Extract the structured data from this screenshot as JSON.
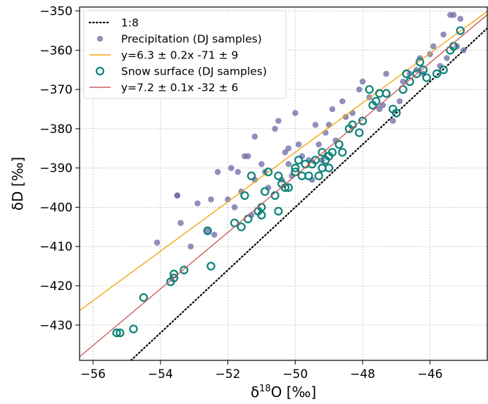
{
  "chart_data": {
    "type": "scatter",
    "title": "",
    "xlabel_prefix": "δ",
    "xlabel_sup": "18",
    "xlabel_suffix": "O [‰]",
    "ylabel": "δD [‰]",
    "xlim": [
      -56.4,
      -44.3
    ],
    "ylim": [
      -439,
      -349
    ],
    "x_ticks": [
      -56,
      -54,
      -52,
      -50,
      -48,
      -46
    ],
    "y_ticks": [
      -350,
      -360,
      -370,
      -380,
      -390,
      -400,
      -410,
      -420,
      -430
    ],
    "grid": true,
    "legend_position": "upper-left",
    "series": [
      {
        "name": "1:8",
        "kind": "line",
        "style": "dotted",
        "color": "#000000",
        "slope": 8,
        "intercept": 0
      },
      {
        "name": "Precipitation (DJ samples)",
        "kind": "points",
        "marker": "filled-circle",
        "color": "#6b6aa6",
        "x": [
          -54.1,
          -53.5,
          -53.5,
          -53.4,
          -53.1,
          -52.9,
          -52.6,
          -52.5,
          -52.4,
          -52.3,
          -52.0,
          -51.9,
          -51.8,
          -51.7,
          -51.6,
          -51.5,
          -51.4,
          -51.3,
          -51.2,
          -51.2,
          -51.0,
          -50.9,
          -50.8,
          -50.6,
          -50.5,
          -50.4,
          -50.3,
          -50.2,
          -50.2,
          -50.1,
          -50.0,
          -49.9,
          -49.8,
          -49.6,
          -49.5,
          -49.4,
          -49.3,
          -49.2,
          -49.1,
          -49.0,
          -48.9,
          -48.8,
          -48.6,
          -48.5,
          -48.3,
          -48.1,
          -48.0,
          -47.8,
          -47.5,
          -47.4,
          -47.3,
          -47.1,
          -46.9,
          -46.8,
          -46.6,
          -46.4,
          -46.3,
          -46.2,
          -46.0,
          -45.9,
          -45.7,
          -45.6,
          -45.5,
          -45.4,
          -45.3,
          -45.2,
          -45.1,
          -45.0
        ],
        "y": [
          -409,
          -397,
          -397,
          -404,
          -410,
          -399,
          -406,
          -398,
          -407,
          -391,
          -398,
          -390,
          -400,
          -391,
          -396,
          -387,
          -387,
          -402,
          -382,
          -393,
          -389,
          -391,
          -395,
          -380,
          -378,
          -393,
          -386,
          -385,
          -389,
          -392,
          -376,
          -384,
          -387,
          -388,
          -393,
          -379,
          -384,
          -388,
          -381,
          -379,
          -375,
          -383,
          -373,
          -377,
          -376,
          -370,
          -368,
          -372,
          -375,
          -374,
          -366,
          -378,
          -373,
          -368,
          -366,
          -365,
          -362,
          -366,
          -361,
          -359,
          -364,
          -356,
          -362,
          -351,
          -351,
          -359,
          -352,
          -360
        ]
      },
      {
        "name": "y=6.3 ± 0.2x -71 ± 9",
        "kind": "line",
        "style": "solid",
        "color": "#f5a512",
        "slope": 6.3,
        "intercept": -71
      },
      {
        "name": "Snow surface (DJ samples)",
        "kind": "points",
        "marker": "open-circle",
        "color": "#0f837a",
        "x": [
          -55.3,
          -55.2,
          -54.8,
          -54.5,
          -53.7,
          -53.6,
          -53.6,
          -53.3,
          -52.6,
          -52.5,
          -51.8,
          -51.6,
          -51.5,
          -51.4,
          -51.3,
          -51.1,
          -51.0,
          -51.0,
          -50.9,
          -50.8,
          -50.6,
          -50.5,
          -50.5,
          -50.4,
          -50.3,
          -50.2,
          -50.0,
          -50.0,
          -49.9,
          -49.8,
          -49.7,
          -49.6,
          -49.5,
          -49.4,
          -49.3,
          -49.2,
          -49.2,
          -49.1,
          -49.0,
          -49.0,
          -48.9,
          -48.7,
          -48.6,
          -48.4,
          -48.3,
          -48.1,
          -48.0,
          -47.8,
          -47.7,
          -47.6,
          -47.5,
          -47.3,
          -47.1,
          -47.0,
          -46.8,
          -46.7,
          -46.6,
          -46.4,
          -46.3,
          -46.2,
          -46.1,
          -45.8,
          -45.6,
          -45.4,
          -45.3,
          -45.1
        ],
        "y": [
          -432,
          -432,
          -431,
          -423,
          -419,
          -418,
          -417,
          -416,
          -406,
          -415,
          -404,
          -405,
          -397,
          -403,
          -392,
          -401,
          -402,
          -400,
          -396,
          -391,
          -397,
          -392,
          -401,
          -394,
          -395,
          -395,
          -391,
          -390,
          -388,
          -392,
          -389,
          -392,
          -389,
          -388,
          -392,
          -386,
          -390,
          -388,
          -390,
          -387,
          -386,
          -384,
          -386,
          -380,
          -379,
          -381,
          -378,
          -370,
          -374,
          -373,
          -371,
          -371,
          -375,
          -376,
          -370,
          -366,
          -368,
          -366,
          -363,
          -365,
          -367,
          -366,
          -365,
          -360,
          -359,
          -355
        ]
      },
      {
        "name": "y=7.2 ± 0.1x -32 ± 6",
        "kind": "line",
        "style": "solid",
        "color": "#cd5c5c",
        "slope": 7.2,
        "intercept": -32
      }
    ]
  }
}
